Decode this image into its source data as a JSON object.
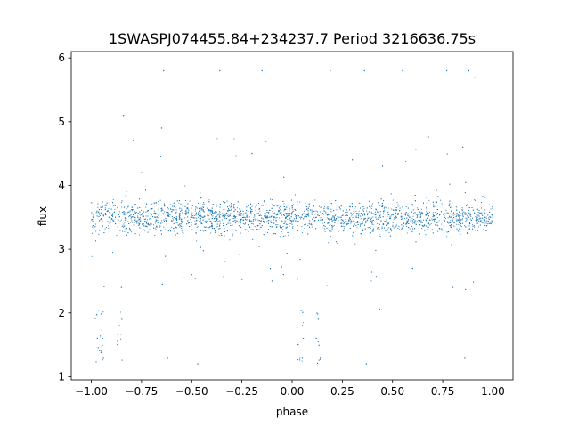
{
  "chart_data": {
    "type": "scatter",
    "title": "1SWASPJ074455.84+234237.7 Period 3216636.75s",
    "xlabel": "phase",
    "ylabel": "flux",
    "xlim": [
      -1.1,
      1.1
    ],
    "ylim": [
      0.95,
      6.1
    ],
    "x_ticks": [
      -1.0,
      -0.75,
      -0.5,
      -0.25,
      0.0,
      0.25,
      0.5,
      0.75,
      1.0
    ],
    "x_tick_labels": [
      "−1.00",
      "−0.75",
      "−0.50",
      "−0.25",
      "0.00",
      "0.25",
      "0.50",
      "0.75",
      "1.00"
    ],
    "y_ticks": [
      1,
      2,
      3,
      4,
      5,
      6
    ],
    "y_tick_labels": [
      "1",
      "2",
      "3",
      "4",
      "5",
      "6"
    ],
    "grid": false,
    "point_color": "#1f77b4",
    "series": [
      {
        "typical_range": [
          3.0,
          4.0
        ],
        "points": [
          [
            -0.99,
            3.5
          ],
          [
            -0.96,
            3.45
          ],
          [
            -0.92,
            3.6
          ],
          [
            -0.88,
            3.4
          ],
          [
            -0.84,
            3.55
          ],
          [
            -0.8,
            3.5
          ],
          [
            -0.76,
            3.4
          ],
          [
            -0.72,
            3.6
          ],
          [
            -0.68,
            3.5
          ],
          [
            -0.64,
            3.55
          ],
          [
            -0.6,
            3.45
          ],
          [
            -0.56,
            3.5
          ],
          [
            -0.52,
            3.45
          ],
          [
            -0.48,
            3.55
          ],
          [
            -0.44,
            3.5
          ],
          [
            -0.4,
            3.4
          ],
          [
            -0.36,
            3.5
          ],
          [
            -0.32,
            3.6
          ],
          [
            -0.28,
            3.45
          ],
          [
            -0.24,
            3.5
          ],
          [
            -0.2,
            3.4
          ],
          [
            -0.16,
            3.55
          ],
          [
            -0.12,
            3.5
          ],
          [
            -0.08,
            3.45
          ],
          [
            -0.04,
            3.4
          ],
          [
            0.0,
            3.45
          ],
          [
            0.04,
            3.5
          ],
          [
            0.08,
            3.55
          ],
          [
            0.12,
            3.5
          ],
          [
            0.16,
            3.6
          ],
          [
            0.2,
            3.45
          ],
          [
            0.24,
            3.5
          ],
          [
            0.28,
            3.4
          ],
          [
            0.32,
            3.5
          ],
          [
            0.36,
            3.55
          ],
          [
            0.4,
            3.45
          ],
          [
            0.44,
            3.5
          ],
          [
            0.48,
            3.4
          ],
          [
            0.52,
            3.5
          ],
          [
            0.56,
            3.55
          ],
          [
            0.6,
            3.45
          ],
          [
            0.64,
            3.5
          ],
          [
            0.68,
            3.4
          ],
          [
            0.72,
            3.55
          ],
          [
            0.76,
            3.5
          ],
          [
            0.8,
            3.45
          ],
          [
            0.84,
            3.4
          ],
          [
            0.88,
            3.5
          ],
          [
            0.92,
            3.45
          ],
          [
            0.96,
            3.5
          ],
          [
            0.99,
            3.4
          ],
          [
            -0.97,
            1.6
          ],
          [
            -0.95,
            1.4
          ],
          [
            -0.94,
            1.3
          ],
          [
            -0.87,
            1.5
          ],
          [
            -0.86,
            1.8
          ],
          [
            -0.85,
            2.4
          ],
          [
            -0.84,
            5.1
          ],
          [
            -0.64,
            5.8
          ],
          [
            -0.62,
            1.3
          ],
          [
            -0.47,
            1.2
          ],
          [
            -0.36,
            5.8
          ],
          [
            -0.15,
            5.8
          ],
          [
            0.03,
            1.5
          ],
          [
            0.05,
            1.3
          ],
          [
            0.12,
            1.6
          ],
          [
            0.13,
            1.9
          ],
          [
            0.14,
            1.3
          ],
          [
            0.19,
            5.8
          ],
          [
            0.37,
            1.2
          ],
          [
            0.36,
            5.8
          ],
          [
            0.55,
            5.8
          ],
          [
            0.77,
            5.8
          ],
          [
            0.86,
            1.3
          ],
          [
            0.88,
            5.8
          ],
          [
            0.91,
            5.7
          ],
          [
            -0.75,
            4.2
          ],
          [
            -0.5,
            2.6
          ],
          [
            -0.2,
            4.5
          ],
          [
            0.3,
            4.4
          ],
          [
            0.6,
            2.7
          ],
          [
            0.85,
            4.6
          ],
          [
            -0.1,
            2.5
          ],
          [
            0.45,
            4.3
          ],
          [
            -0.65,
            4.9
          ],
          [
            0.8,
            2.4
          ]
        ]
      }
    ]
  }
}
